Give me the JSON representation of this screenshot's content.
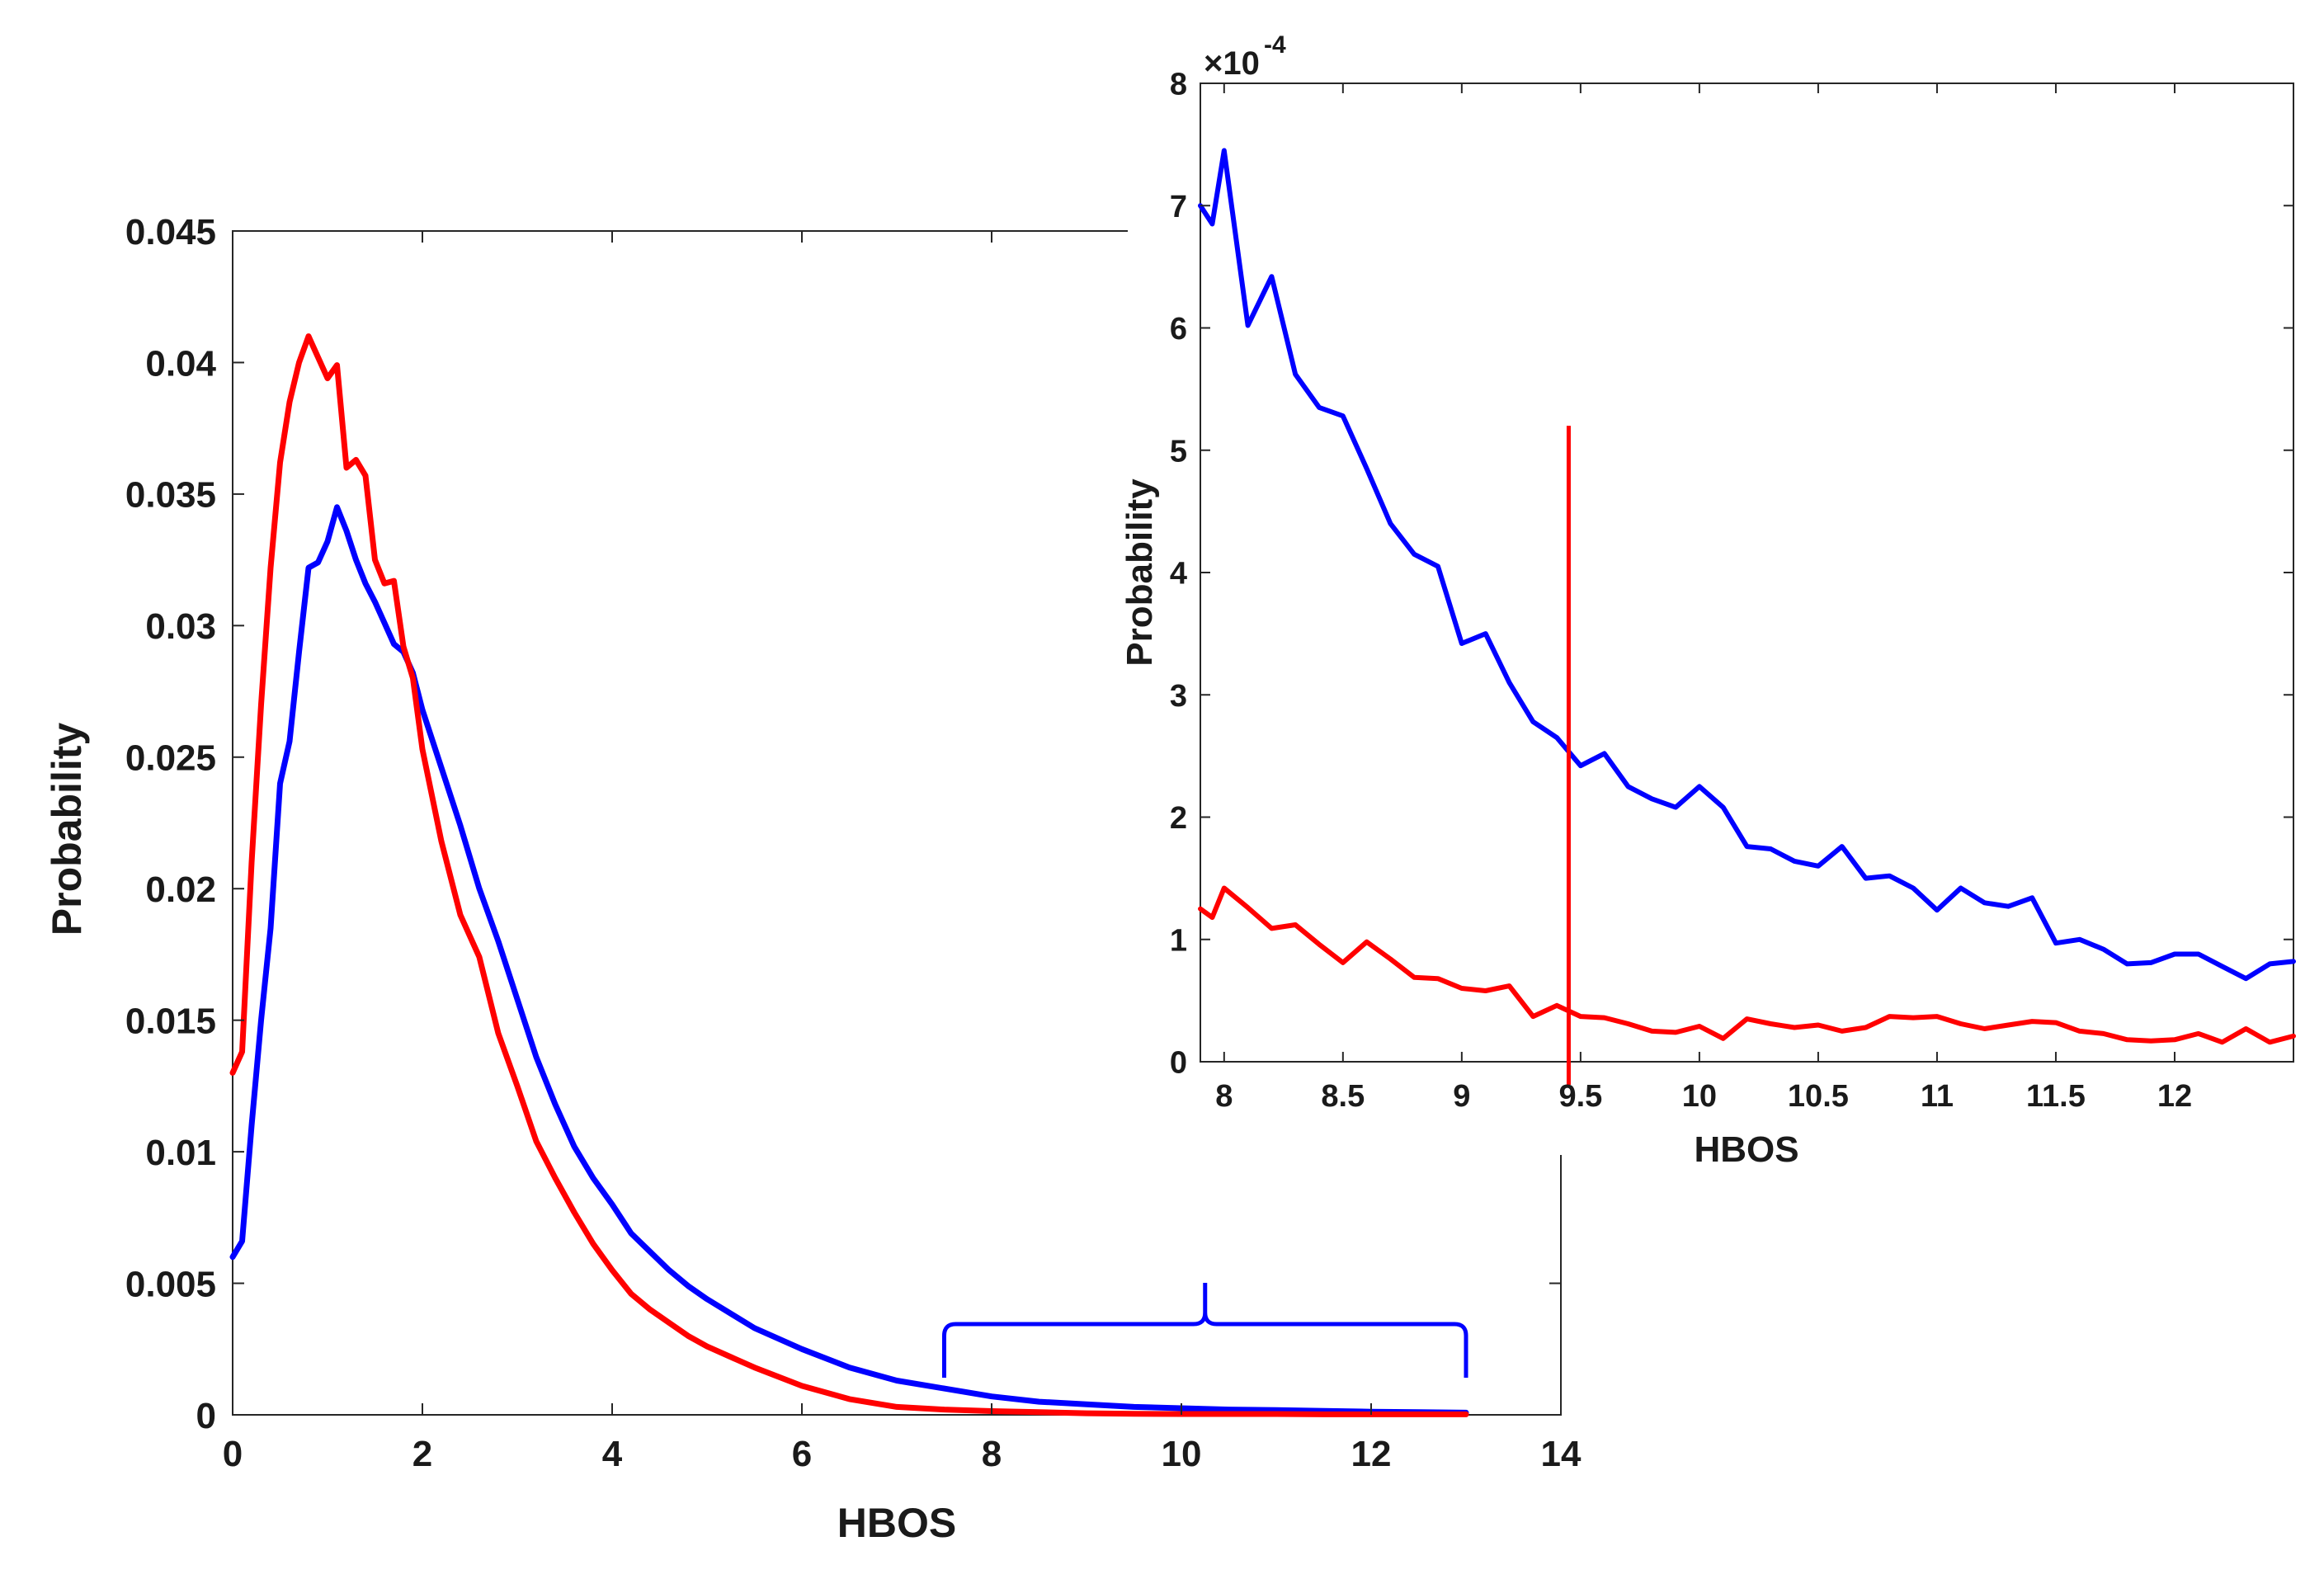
{
  "chart_data": [
    {
      "id": "main",
      "type": "line",
      "title": "",
      "xlabel": "HBOS",
      "ylabel": "Probability",
      "xlim": [
        0,
        14
      ],
      "ylim": [
        0,
        0.045
      ],
      "xticks": [
        0,
        2,
        4,
        6,
        8,
        10,
        12,
        14
      ],
      "xtick_labels": [
        "0",
        "2",
        "4",
        "6",
        "8",
        "10",
        "12",
        "14"
      ],
      "yticks": [
        0,
        0.005,
        0.01,
        0.015,
        0.02,
        0.025,
        0.03,
        0.035,
        0.04,
        0.045
      ],
      "ytick_labels": [
        "0",
        "0.005",
        "0.01",
        "0.015",
        "0.02",
        "0.025",
        "0.03",
        "0.035",
        "0.04",
        "0.045"
      ],
      "grid": false,
      "annotation": {
        "type": "brace",
        "x_range": [
          7.5,
          13
        ],
        "color": "#0000ff"
      },
      "series": [
        {
          "name": "blue",
          "color": "#0000ff",
          "x": [
            0,
            0.1,
            0.2,
            0.3,
            0.4,
            0.5,
            0.6,
            0.7,
            0.8,
            0.9,
            1.0,
            1.1,
            1.2,
            1.3,
            1.4,
            1.5,
            1.6,
            1.7,
            1.8,
            1.9,
            2.0,
            2.2,
            2.4,
            2.6,
            2.8,
            3.0,
            3.2,
            3.4,
            3.6,
            3.8,
            4.0,
            4.2,
            4.4,
            4.6,
            4.8,
            5.0,
            5.5,
            6.0,
            6.5,
            7.0,
            7.5,
            8.0,
            8.5,
            9.0,
            9.5,
            10,
            10.5,
            11,
            11.5,
            12,
            12.5,
            13
          ],
          "y": [
            0.006,
            0.0066,
            0.011,
            0.015,
            0.0185,
            0.024,
            0.0256,
            0.029,
            0.0322,
            0.0324,
            0.0332,
            0.0345,
            0.0336,
            0.0325,
            0.0316,
            0.0309,
            0.0301,
            0.0293,
            0.029,
            0.0282,
            0.0268,
            0.0246,
            0.0224,
            0.02,
            0.018,
            0.0158,
            0.0136,
            0.0118,
            0.0102,
            0.009,
            0.008,
            0.0069,
            0.0062,
            0.0055,
            0.0049,
            0.0044,
            0.0033,
            0.0025,
            0.0018,
            0.0013,
            0.001,
            0.0007,
            0.0005,
            0.0004,
            0.0003,
            0.00025,
            0.0002,
            0.00018,
            0.00015,
            0.00012,
            0.0001,
            8e-05
          ]
        },
        {
          "name": "red",
          "color": "#ff0000",
          "x": [
            0,
            0.1,
            0.2,
            0.3,
            0.4,
            0.5,
            0.6,
            0.7,
            0.8,
            0.9,
            1.0,
            1.1,
            1.2,
            1.3,
            1.4,
            1.5,
            1.6,
            1.7,
            1.8,
            1.9,
            2.0,
            2.2,
            2.4,
            2.6,
            2.8,
            3.0,
            3.2,
            3.4,
            3.6,
            3.8,
            4.0,
            4.2,
            4.4,
            4.6,
            4.8,
            5.0,
            5.5,
            6.0,
            6.5,
            7.0,
            7.5,
            8.0,
            8.5,
            9.0,
            9.5,
            10,
            10.5,
            11,
            11.5,
            12,
            12.5,
            13
          ],
          "y": [
            0.013,
            0.0138,
            0.021,
            0.027,
            0.0322,
            0.0362,
            0.0385,
            0.04,
            0.041,
            0.0402,
            0.0394,
            0.0399,
            0.036,
            0.0363,
            0.0357,
            0.0325,
            0.0316,
            0.0317,
            0.0292,
            0.028,
            0.0253,
            0.0218,
            0.019,
            0.0174,
            0.0145,
            0.0125,
            0.0104,
            0.009,
            0.0077,
            0.0065,
            0.0055,
            0.0046,
            0.004,
            0.0035,
            0.003,
            0.0026,
            0.0018,
            0.0011,
            0.0006,
            0.0003,
            0.0002,
            0.00014,
            0.0001,
            6e-05,
            4e-05,
            3e-05,
            3e-05,
            3e-05,
            2e-05,
            2e-05,
            2e-05,
            2e-05
          ]
        }
      ]
    },
    {
      "id": "inset",
      "type": "line",
      "title": "",
      "xlabel": "HBOS",
      "ylabel": "Probability",
      "xlim": [
        7.9,
        12.5
      ],
      "ylim": [
        0,
        8
      ],
      "y_scale_label": "×10",
      "y_scale_exponent": "-4",
      "xticks": [
        8,
        8.5,
        9,
        9.5,
        10,
        10.5,
        11,
        11.5,
        12
      ],
      "xtick_labels": [
        "8",
        "8.5",
        "9",
        "9.5",
        "10",
        "10.5",
        "11",
        "11.5",
        "12"
      ],
      "yticks": [
        0,
        1,
        2,
        3,
        4,
        5,
        6,
        7,
        8
      ],
      "ytick_labels": [
        "0",
        "1",
        "2",
        "3",
        "4",
        "5",
        "6",
        "7",
        "8"
      ],
      "grid": false,
      "vline": {
        "x": 9.45,
        "y_top": 5.2,
        "color": "#ff0000"
      },
      "series": [
        {
          "name": "blue",
          "color": "#0000ff",
          "x": [
            7.9,
            7.95,
            8.0,
            8.1,
            8.2,
            8.3,
            8.4,
            8.5,
            8.6,
            8.7,
            8.8,
            8.9,
            9.0,
            9.1,
            9.2,
            9.3,
            9.4,
            9.5,
            9.6,
            9.7,
            9.8,
            9.9,
            10.0,
            10.1,
            10.2,
            10.3,
            10.4,
            10.5,
            10.6,
            10.7,
            10.8,
            10.9,
            11.0,
            11.1,
            11.2,
            11.3,
            11.4,
            11.5,
            11.6,
            11.7,
            11.8,
            11.9,
            12.0,
            12.1,
            12.2,
            12.3,
            12.4,
            12.5
          ],
          "y": [
            7.0,
            6.85,
            7.45,
            6.02,
            6.42,
            5.62,
            5.35,
            5.28,
            4.85,
            4.4,
            4.15,
            4.05,
            3.42,
            3.5,
            3.1,
            2.78,
            2.65,
            2.42,
            2.52,
            2.25,
            2.15,
            2.08,
            2.25,
            2.08,
            1.76,
            1.74,
            1.64,
            1.6,
            1.76,
            1.5,
            1.52,
            1.42,
            1.24,
            1.42,
            1.3,
            1.27,
            1.34,
            0.97,
            1.0,
            0.92,
            0.8,
            0.81,
            0.88,
            0.88,
            0.78,
            0.68,
            0.8,
            0.82
          ]
        },
        {
          "name": "red",
          "color": "#ff0000",
          "x": [
            7.9,
            7.95,
            8.0,
            8.1,
            8.2,
            8.3,
            8.4,
            8.5,
            8.6,
            8.7,
            8.8,
            8.9,
            9.0,
            9.1,
            9.2,
            9.3,
            9.4,
            9.5,
            9.6,
            9.7,
            9.8,
            9.9,
            10.0,
            10.1,
            10.2,
            10.3,
            10.4,
            10.5,
            10.6,
            10.7,
            10.8,
            10.9,
            11.0,
            11.1,
            11.2,
            11.3,
            11.4,
            11.5,
            11.6,
            11.7,
            11.8,
            11.9,
            12.0,
            12.1,
            12.2,
            12.3,
            12.4,
            12.5
          ],
          "y": [
            1.25,
            1.18,
            1.42,
            1.26,
            1.09,
            1.12,
            0.96,
            0.81,
            0.98,
            0.84,
            0.69,
            0.68,
            0.6,
            0.58,
            0.62,
            0.37,
            0.46,
            0.37,
            0.36,
            0.31,
            0.25,
            0.24,
            0.29,
            0.19,
            0.35,
            0.31,
            0.28,
            0.3,
            0.25,
            0.28,
            0.37,
            0.36,
            0.37,
            0.31,
            0.27,
            0.3,
            0.33,
            0.32,
            0.25,
            0.23,
            0.18,
            0.17,
            0.18,
            0.23,
            0.16,
            0.27,
            0.16,
            0.21
          ]
        }
      ]
    }
  ]
}
